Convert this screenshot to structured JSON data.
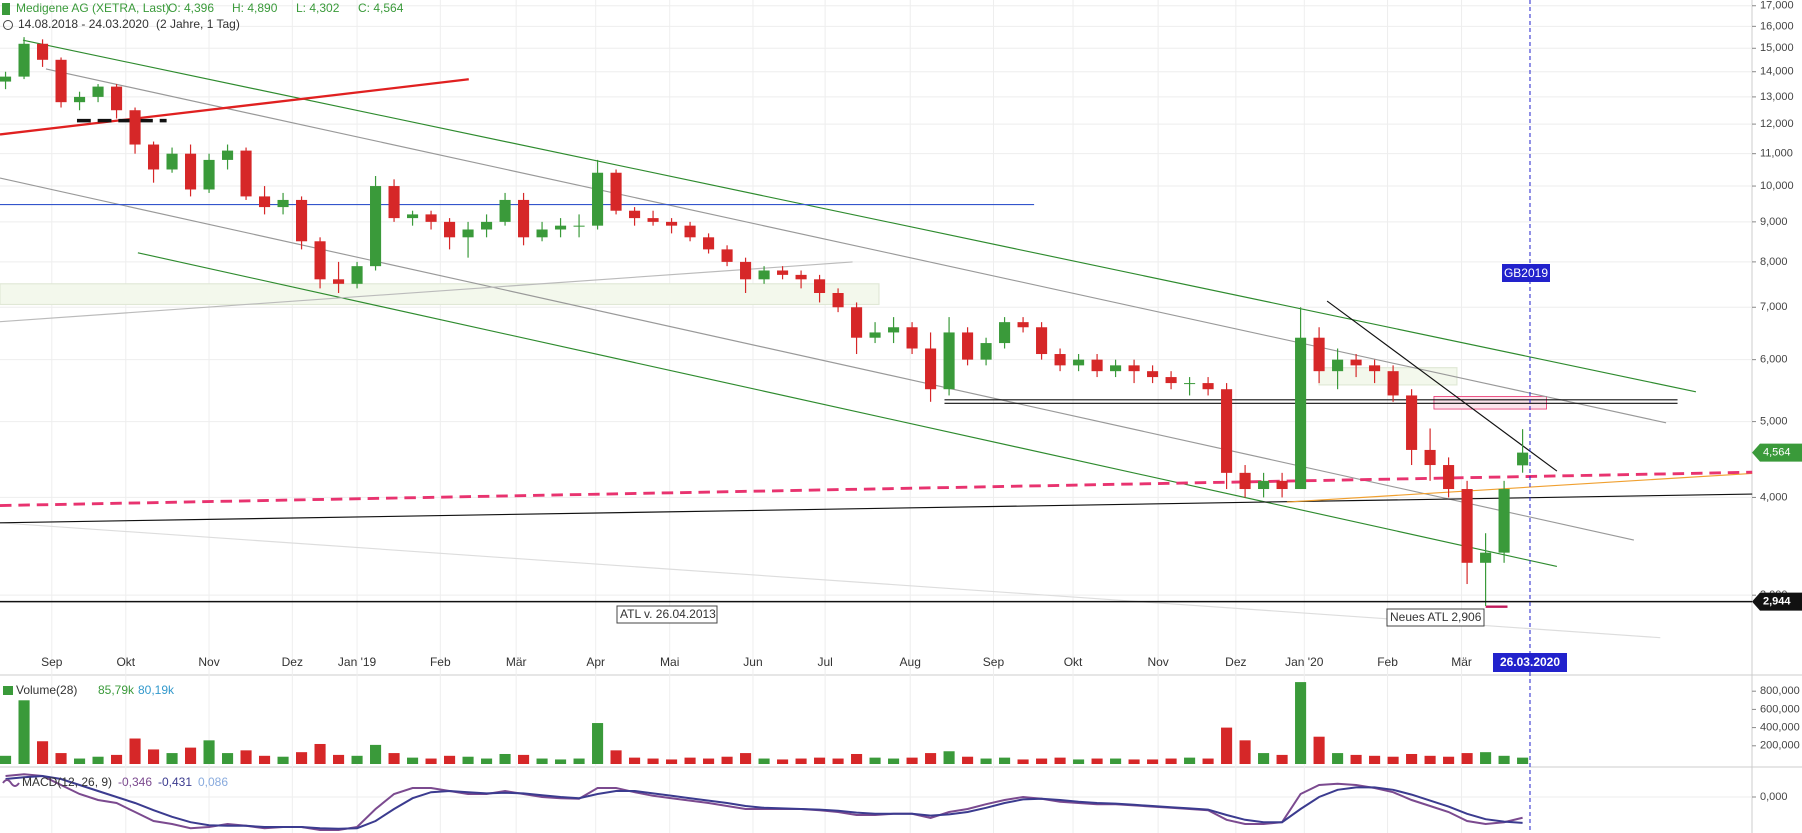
{
  "header": {
    "instrument": "Medigene AG (XETRA, Last)",
    "open": "O: 4,396",
    "high": "H: 4,890",
    "low": "L: 4,302",
    "close": "C: 4,564",
    "range": "14.08.2018 - 24.03.2020",
    "period": "(2 Jahre, 1 Tag)"
  },
  "annotations": {
    "gb": "GB2019",
    "atl_old": "ATL v. 26.04.2013",
    "atl_new": "Neues ATL 2,906"
  },
  "chart_data": [
    {
      "type": "candlestick",
      "log_scale": true,
      "grid": true,
      "up_color": "#3a9a3a",
      "down_color": "#d62728",
      "categories": [
        null,
        null,
        null,
        null,
        null,
        null,
        null,
        null,
        null,
        null,
        null,
        null,
        null,
        null,
        null,
        null,
        null,
        null,
        null,
        null,
        null,
        null,
        null,
        null,
        null,
        null,
        null,
        null,
        null,
        null,
        null,
        null,
        null,
        null,
        null,
        null,
        null,
        null,
        null,
        null,
        null,
        null,
        null,
        null,
        null,
        null,
        null,
        null,
        null,
        null,
        null,
        null,
        null,
        null,
        null,
        null,
        null,
        null,
        null,
        null,
        null,
        null,
        null,
        null,
        null,
        null,
        null,
        null,
        null,
        null,
        null,
        null,
        null,
        null,
        null,
        null,
        null,
        null,
        null,
        null,
        null,
        null,
        null
      ],
      "open": [
        13.6,
        13.8,
        15.2,
        14.5,
        12.8,
        13.0,
        13.4,
        12.5,
        11.3,
        10.5,
        11.0,
        9.9,
        10.8,
        11.1,
        9.7,
        9.4,
        9.6,
        8.5,
        7.6,
        7.5,
        7.9,
        10.0,
        9.1,
        9.2,
        9.0,
        8.6,
        8.8,
        9.0,
        9.6,
        8.6,
        8.8,
        8.9,
        8.9,
        10.4,
        9.3,
        9.1,
        9.0,
        8.9,
        8.6,
        8.3,
        8.0,
        7.6,
        7.8,
        7.7,
        7.6,
        7.3,
        7.0,
        6.4,
        6.5,
        6.6,
        6.2,
        5.5,
        6.5,
        6.0,
        6.3,
        6.7,
        6.6,
        6.1,
        5.9,
        6.0,
        5.8,
        5.9,
        5.8,
        5.7,
        5.6,
        5.6,
        5.5,
        4.3,
        4.1,
        4.2,
        4.1,
        6.4,
        5.8,
        6.0,
        5.9,
        5.8,
        5.4,
        4.6,
        4.4,
        4.1,
        3.3,
        3.4,
        4.396
      ],
      "high": [
        14.0,
        15.5,
        15.4,
        14.6,
        13.2,
        13.5,
        13.5,
        12.6,
        11.4,
        11.2,
        11.3,
        11.0,
        11.3,
        11.2,
        10.0,
        9.8,
        9.7,
        8.6,
        8.0,
        8.0,
        10.3,
        10.2,
        9.3,
        9.3,
        9.1,
        9.0,
        9.2,
        9.8,
        9.8,
        9.0,
        9.1,
        9.2,
        10.8,
        10.5,
        9.4,
        9.3,
        9.1,
        9.0,
        8.7,
        8.4,
        8.1,
        7.9,
        7.9,
        7.8,
        7.7,
        7.4,
        7.1,
        6.7,
        6.8,
        6.7,
        6.5,
        6.8,
        6.6,
        6.4,
        6.8,
        6.8,
        6.7,
        6.2,
        6.1,
        6.1,
        6.0,
        6.0,
        5.9,
        5.8,
        5.7,
        5.7,
        5.6,
        4.4,
        4.3,
        4.3,
        7.0,
        6.6,
        6.2,
        6.1,
        6.0,
        5.9,
        5.5,
        4.9,
        4.5,
        4.2,
        3.6,
        4.2,
        4.89
      ],
      "low": [
        13.3,
        13.7,
        14.2,
        12.6,
        12.5,
        12.8,
        12.2,
        11.0,
        10.1,
        10.4,
        9.7,
        9.8,
        10.5,
        9.6,
        9.2,
        9.2,
        8.3,
        7.4,
        7.3,
        7.4,
        7.8,
        9.0,
        8.9,
        8.8,
        8.3,
        8.1,
        8.6,
        8.9,
        8.4,
        8.5,
        8.6,
        8.6,
        8.8,
        9.2,
        8.9,
        8.9,
        8.7,
        8.5,
        8.2,
        7.9,
        7.3,
        7.5,
        7.6,
        7.4,
        7.1,
        6.9,
        6.1,
        6.3,
        6.3,
        6.1,
        5.3,
        5.4,
        5.9,
        5.9,
        6.2,
        6.5,
        6.0,
        5.8,
        5.8,
        5.7,
        5.7,
        5.6,
        5.6,
        5.5,
        5.4,
        5.4,
        4.1,
        4.0,
        4.0,
        4.0,
        4.1,
        5.6,
        5.5,
        5.7,
        5.6,
        5.3,
        4.4,
        4.2,
        4.0,
        3.1,
        2.906,
        3.3,
        4.302
      ],
      "close": [
        13.8,
        15.2,
        14.5,
        12.8,
        13.0,
        13.4,
        12.5,
        11.3,
        10.5,
        11.0,
        9.9,
        10.8,
        11.1,
        9.7,
        9.4,
        9.6,
        8.5,
        7.6,
        7.5,
        7.9,
        10.0,
        9.1,
        9.2,
        9.0,
        8.6,
        8.8,
        9.0,
        9.6,
        8.6,
        8.8,
        8.9,
        8.9,
        10.4,
        9.3,
        9.1,
        9.0,
        8.9,
        8.6,
        8.3,
        8.0,
        7.6,
        7.8,
        7.7,
        7.6,
        7.3,
        7.0,
        6.4,
        6.5,
        6.6,
        6.2,
        5.5,
        6.5,
        6.0,
        6.3,
        6.7,
        6.6,
        6.1,
        5.9,
        6.0,
        5.8,
        5.9,
        5.8,
        5.7,
        5.6,
        5.6,
        5.5,
        4.3,
        4.1,
        4.2,
        4.1,
        6.4,
        5.8,
        6.0,
        5.9,
        5.8,
        5.4,
        4.6,
        4.4,
        4.1,
        3.3,
        3.4,
        4.1,
        4.564
      ],
      "xlim": [
        -0.3,
        94.4
      ],
      "xticks": [
        {
          "value": 2.5,
          "label": "Sep"
        },
        {
          "value": 6.5,
          "label": "Okt"
        },
        {
          "value": 11.0,
          "label": "Nov"
        },
        {
          "value": 15.5,
          "label": "Dez"
        },
        {
          "value": 19.0,
          "label": "Jan '19"
        },
        {
          "value": 23.5,
          "label": "Feb"
        },
        {
          "value": 27.6,
          "label": "Mär"
        },
        {
          "value": 31.9,
          "label": "Apr"
        },
        {
          "value": 35.9,
          "label": "Mai"
        },
        {
          "value": 40.4,
          "label": "Jun"
        },
        {
          "value": 44.3,
          "label": "Jul"
        },
        {
          "value": 48.9,
          "label": "Aug"
        },
        {
          "value": 53.4,
          "label": "Sep"
        },
        {
          "value": 57.7,
          "label": "Okt"
        },
        {
          "value": 62.3,
          "label": "Nov"
        },
        {
          "value": 66.5,
          "label": "Dez"
        },
        {
          "value": 70.2,
          "label": "Jan '20"
        },
        {
          "value": 74.7,
          "label": "Feb"
        },
        {
          "value": 78.7,
          "label": "Mär"
        }
      ],
      "cursor_date": {
        "value": 82.4,
        "label": "26.03.2020"
      },
      "ylim": [
        2.393,
        17.29
      ],
      "yticks": [
        {
          "value": 3,
          "label": "3,000"
        },
        {
          "value": 4,
          "label": "4,000"
        },
        {
          "value": 5,
          "label": "5,000"
        },
        {
          "value": 6,
          "label": "6,000"
        },
        {
          "value": 7,
          "label": "7,000"
        },
        {
          "value": 8,
          "label": "8,000"
        },
        {
          "value": 9,
          "label": "9,000"
        },
        {
          "value": 10,
          "label": "10,000"
        },
        {
          "value": 11,
          "label": "11,000"
        },
        {
          "value": 12,
          "label": "12,000"
        },
        {
          "value": 13,
          "label": "13,000"
        },
        {
          "value": 14,
          "label": "14,000"
        },
        {
          "value": 15,
          "label": "15,000"
        },
        {
          "value": 16,
          "label": "16,000"
        },
        {
          "value": 17,
          "label": "17,000"
        }
      ],
      "last_price": {
        "value": 4.564,
        "label": "4,564"
      },
      "atl_line": {
        "value": 2.944,
        "label": "2,944"
      }
    },
    {
      "type": "bar",
      "title": "Volume(28)",
      "subtitle": "85,79k",
      "subtitle2": "80,19k",
      "values": [
        90000,
        700000,
        250000,
        120000,
        60000,
        80000,
        100000,
        280000,
        160000,
        120000,
        180000,
        260000,
        120000,
        150000,
        90000,
        80000,
        130000,
        220000,
        100000,
        90000,
        210000,
        120000,
        70000,
        60000,
        90000,
        80000,
        60000,
        110000,
        100000,
        60000,
        50000,
        60000,
        450000,
        150000,
        70000,
        60000,
        50000,
        70000,
        60000,
        80000,
        120000,
        60000,
        50000,
        60000,
        70000,
        60000,
        110000,
        70000,
        60000,
        70000,
        120000,
        140000,
        80000,
        60000,
        70000,
        50000,
        60000,
        70000,
        50000,
        60000,
        60000,
        50000,
        50000,
        60000,
        70000,
        60000,
        400000,
        260000,
        120000,
        100000,
        900000,
        300000,
        120000,
        100000,
        90000,
        80000,
        110000,
        90000,
        80000,
        120000,
        130000,
        90000,
        70000
      ],
      "ylim": [
        0,
        945000
      ],
      "yticks": [
        {
          "value": 200000,
          "label": "200,000"
        },
        {
          "value": 400000,
          "label": "400,000"
        },
        {
          "value": 600000,
          "label": "600,000"
        },
        {
          "value": 800000,
          "label": "800,000"
        }
      ]
    },
    {
      "type": "line",
      "title": "MACD(12, 26, 9)",
      "subtitle": "-0,346",
      "subtitle2": "-0,431",
      "subtitle3": "0,086",
      "series": [
        {
          "color": "#7b4a8f",
          "values": [
            0.35,
            0.38,
            0.35,
            0.2,
            0.05,
            -0.05,
            -0.1,
            -0.25,
            -0.4,
            -0.45,
            -0.52,
            -0.5,
            -0.45,
            -0.48,
            -0.52,
            -0.5,
            -0.5,
            -0.55,
            -0.55,
            -0.5,
            -0.2,
            0.05,
            0.15,
            0.15,
            0.1,
            0.05,
            0.05,
            0.1,
            0.05,
            0.0,
            -0.02,
            -0.03,
            0.15,
            0.15,
            0.08,
            0.02,
            -0.02,
            -0.06,
            -0.1,
            -0.15,
            -0.2,
            -0.2,
            -0.2,
            -0.2,
            -0.22,
            -0.25,
            -0.3,
            -0.3,
            -0.28,
            -0.28,
            -0.35,
            -0.25,
            -0.2,
            -0.12,
            -0.05,
            0.0,
            -0.03,
            -0.08,
            -0.1,
            -0.12,
            -0.12,
            -0.14,
            -0.16,
            -0.18,
            -0.2,
            -0.22,
            -0.38,
            -0.45,
            -0.45,
            -0.42,
            0.05,
            0.2,
            0.22,
            0.2,
            0.15,
            0.08,
            -0.05,
            -0.15,
            -0.25,
            -0.4,
            -0.45,
            -0.42,
            -0.346
          ]
        },
        {
          "color": "#3b3b8f",
          "values": [
            0.3,
            0.33,
            0.35,
            0.3,
            0.2,
            0.1,
            0.0,
            -0.1,
            -0.22,
            -0.33,
            -0.42,
            -0.47,
            -0.48,
            -0.48,
            -0.5,
            -0.5,
            -0.5,
            -0.52,
            -0.53,
            -0.52,
            -0.4,
            -0.2,
            -0.02,
            0.08,
            0.1,
            0.08,
            0.06,
            0.07,
            0.06,
            0.03,
            0.0,
            -0.02,
            0.05,
            0.1,
            0.1,
            0.06,
            0.02,
            -0.02,
            -0.06,
            -0.1,
            -0.15,
            -0.18,
            -0.19,
            -0.2,
            -0.21,
            -0.23,
            -0.26,
            -0.28,
            -0.28,
            -0.28,
            -0.31,
            -0.29,
            -0.25,
            -0.18,
            -0.1,
            -0.04,
            -0.03,
            -0.05,
            -0.08,
            -0.1,
            -0.11,
            -0.13,
            -0.15,
            -0.17,
            -0.19,
            -0.21,
            -0.3,
            -0.38,
            -0.42,
            -0.42,
            -0.2,
            0.0,
            0.12,
            0.16,
            0.16,
            0.12,
            0.04,
            -0.06,
            -0.16,
            -0.28,
            -0.37,
            -0.41,
            -0.431
          ]
        }
      ],
      "ylim": [
        -0.6,
        0.45
      ],
      "yticks": [
        {
          "value": 0,
          "label": "0,000"
        }
      ]
    }
  ]
}
